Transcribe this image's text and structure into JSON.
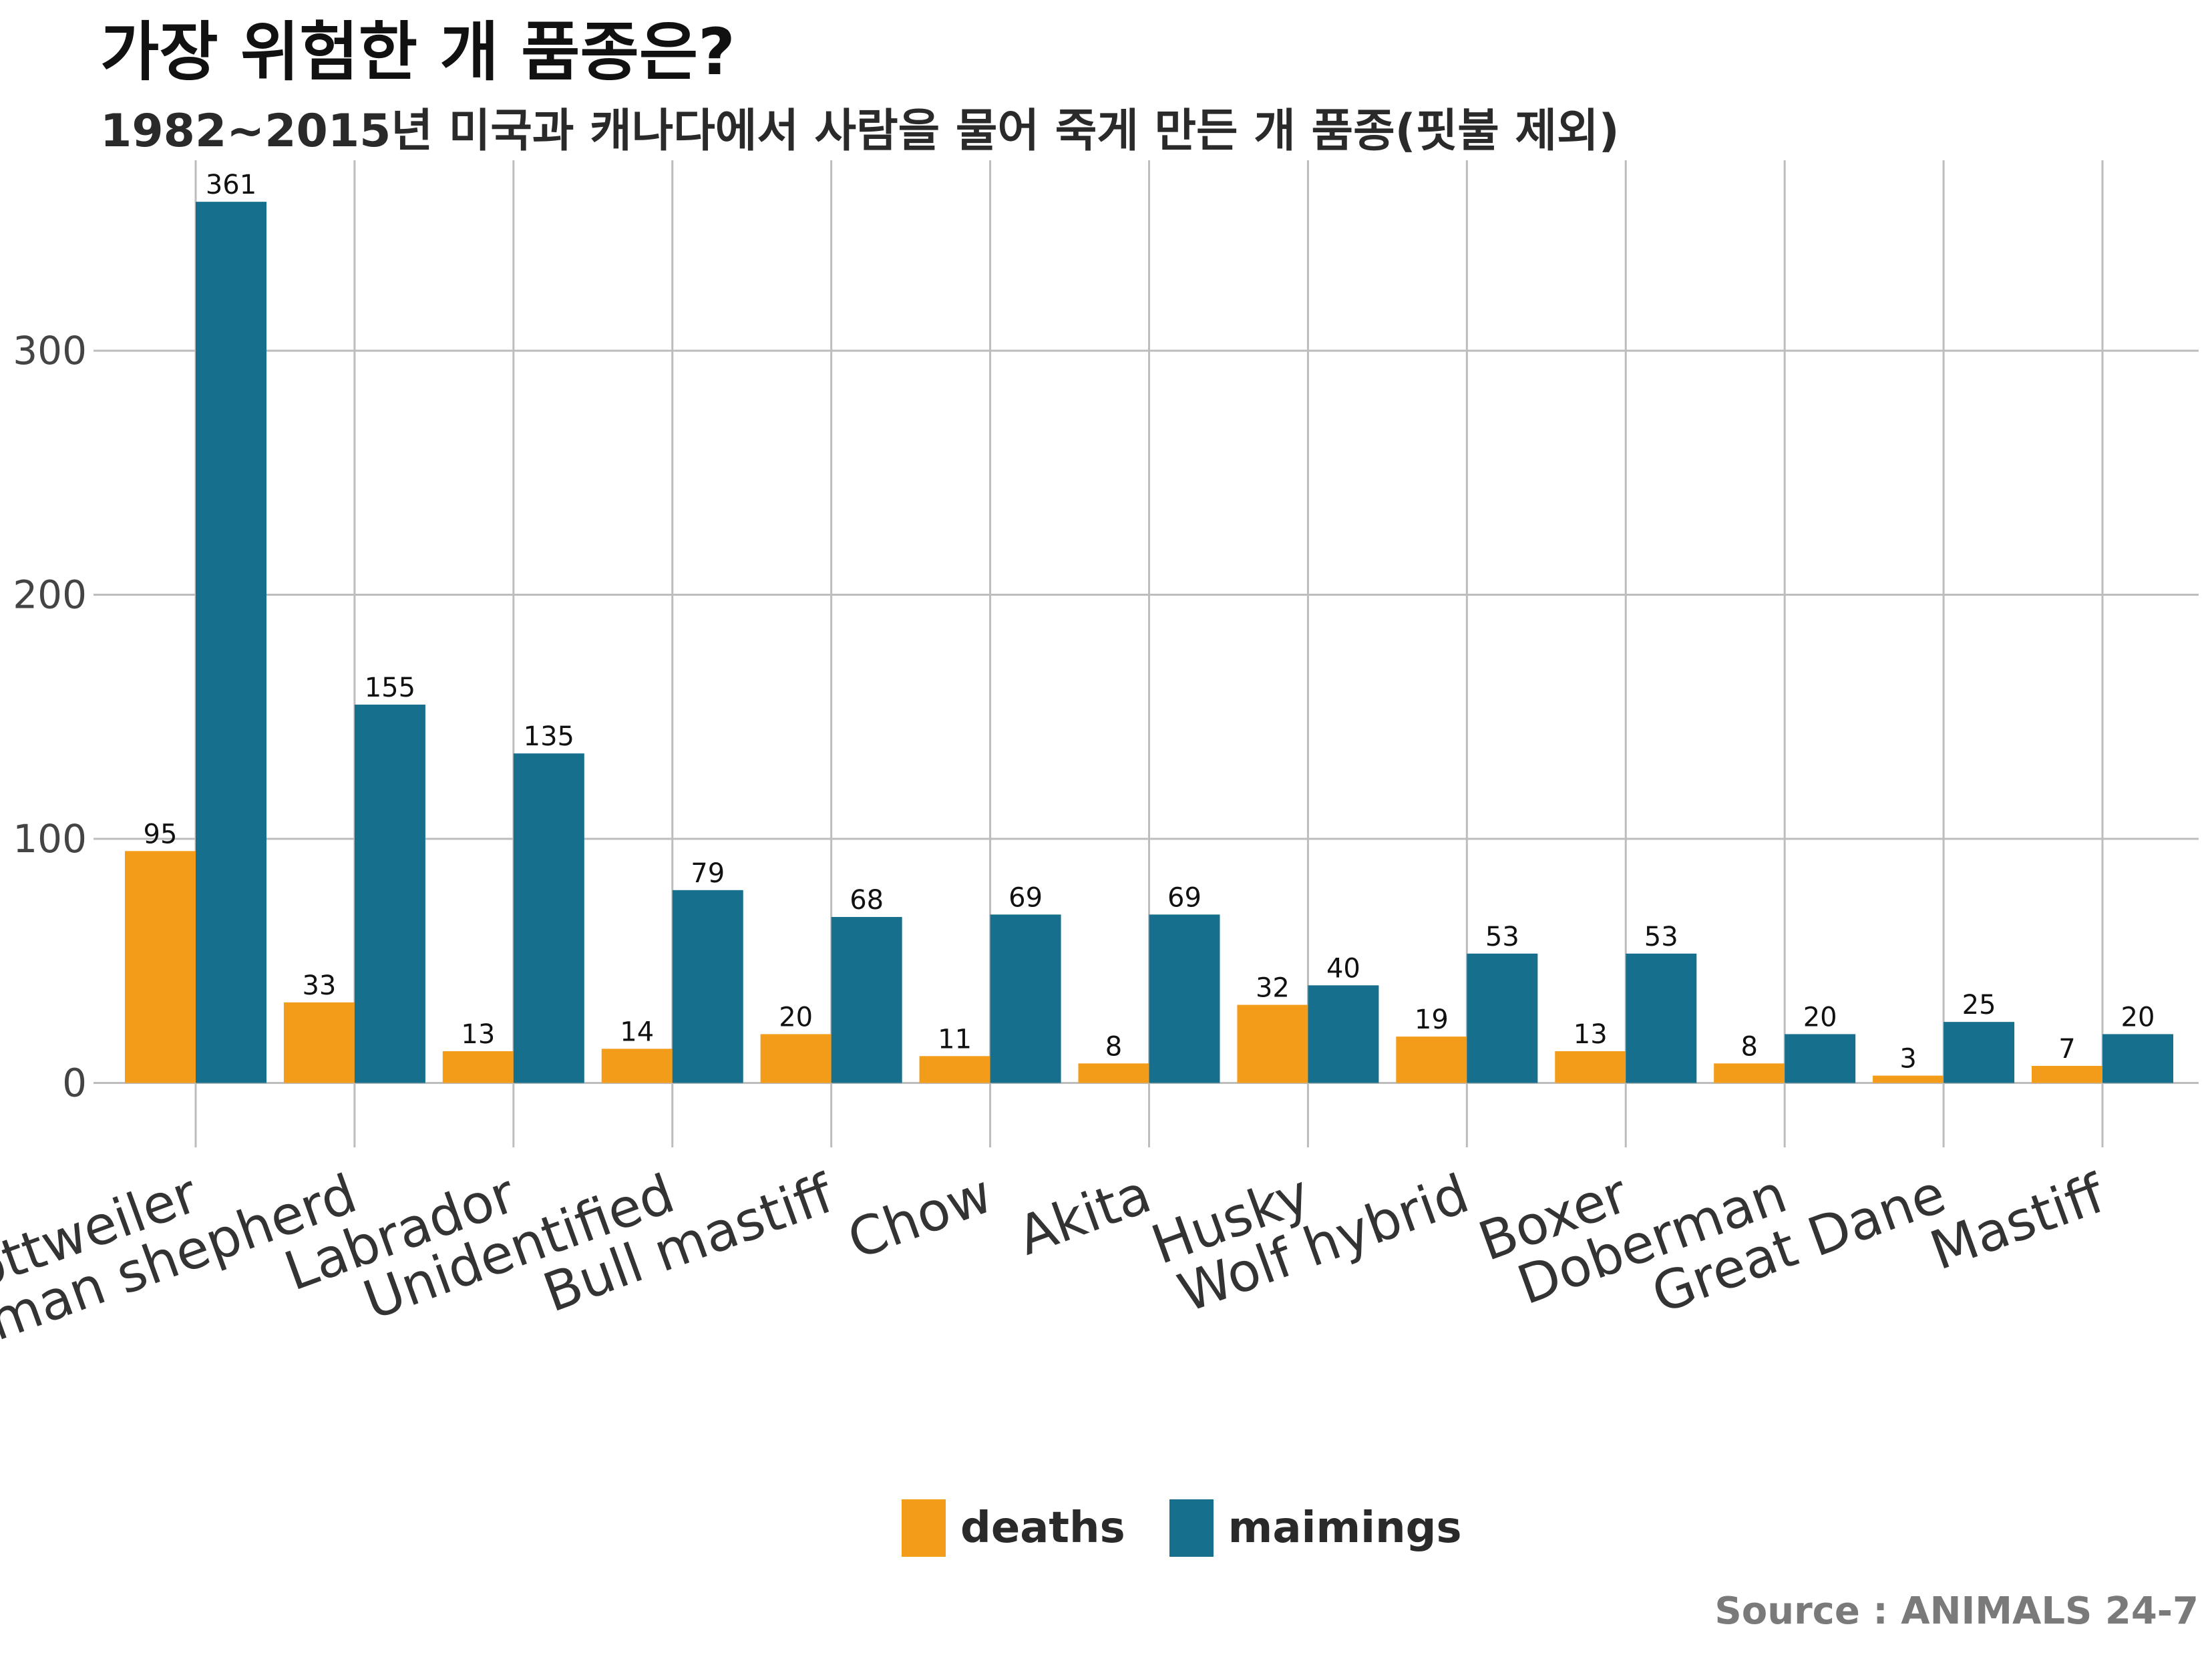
{
  "title": "가장 위험한 개 품종은?",
  "subtitle": "1982~2015년 미국과 캐나다에서 사람을 물어 죽게 만든 개 품종(핏불 제외)",
  "source": "Source : ANIMALS 24-7",
  "colors": {
    "deaths": "#F39C1A",
    "maimings": "#176F8E",
    "grid": "#BDBDBD"
  },
  "chart_data": {
    "type": "bar",
    "categories": [
      "Rottweiler",
      "German shepherd",
      "Labrador",
      "Unidentified",
      "Bull mastiff",
      "Chow",
      "Akita",
      "Husky",
      "Wolf hybrid",
      "Boxer",
      "Doberman",
      "Great Dane",
      "Mastiff"
    ],
    "series": [
      {
        "name": "deaths",
        "values": [
          95,
          33,
          13,
          14,
          20,
          11,
          8,
          32,
          19,
          13,
          8,
          3,
          7
        ]
      },
      {
        "name": "maimings",
        "values": [
          361,
          155,
          135,
          79,
          68,
          69,
          69,
          40,
          53,
          53,
          20,
          25,
          20
        ]
      }
    ],
    "yticks": [
      "0",
      "100",
      "200",
      "300"
    ],
    "ylim": [
      -16,
      378
    ],
    "grid": true,
    "legend_position": "bottom"
  }
}
